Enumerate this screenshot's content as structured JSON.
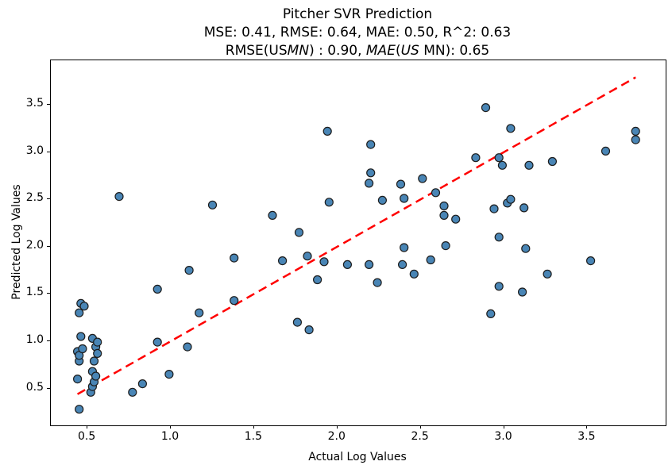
{
  "title": {
    "line1": "Pitcher SVR Prediction",
    "line2": "MSE: 0.41, RMSE: 0.64, MAE: 0.50, R^2: 0.63",
    "line3_segments": [
      {
        "text": "RMSE(US",
        "italic": false
      },
      {
        "text": "MN",
        "italic": true
      },
      {
        "text": ") : 0.90, ",
        "italic": false
      },
      {
        "text": "MAE",
        "italic": true
      },
      {
        "text": "(",
        "italic": false
      },
      {
        "text": "US",
        "italic": true
      },
      {
        "text": " MN): 0.65",
        "italic": false
      }
    ]
  },
  "axes": {
    "xlabel": "Actual Log Values",
    "ylabel": "Predicted Log Values",
    "x_ticks": [
      0.5,
      1.0,
      1.5,
      2.0,
      2.5,
      3.0,
      3.5
    ],
    "y_ticks": [
      0.5,
      1.0,
      1.5,
      2.0,
      2.5,
      3.0,
      3.5
    ]
  },
  "chart_data": {
    "type": "scatter",
    "title": "Pitcher SVR Prediction\nMSE: 0.41, RMSE: 0.64, MAE: 0.50, R^2: 0.63\nRMSE(US MN): 0.90, MAE(US MN): 0.65",
    "xlabel": "Actual Log Values",
    "ylabel": "Predicted Log Values",
    "xlim": [
      0.28,
      3.97
    ],
    "ylim": [
      0.11,
      3.97
    ],
    "grid": false,
    "legend": "none",
    "marker_color": "#4985b5",
    "marker_edge_color": "#1c1c1c",
    "reference_line": {
      "style": "dashed",
      "color": "#ff0000",
      "x": [
        0.44,
        3.79
      ],
      "y": [
        0.44,
        3.79
      ]
    },
    "points": [
      [
        0.44,
        0.6
      ],
      [
        0.44,
        0.89
      ],
      [
        0.45,
        0.28
      ],
      [
        0.45,
        0.79
      ],
      [
        0.45,
        0.85
      ],
      [
        0.45,
        1.3
      ],
      [
        0.46,
        1.05
      ],
      [
        0.46,
        1.4
      ],
      [
        0.47,
        0.92
      ],
      [
        0.48,
        1.37
      ],
      [
        0.52,
        0.46
      ],
      [
        0.53,
        0.52
      ],
      [
        0.53,
        0.68
      ],
      [
        0.53,
        1.03
      ],
      [
        0.54,
        0.57
      ],
      [
        0.54,
        0.79
      ],
      [
        0.55,
        0.63
      ],
      [
        0.55,
        0.94
      ],
      [
        0.56,
        0.87
      ],
      [
        0.56,
        0.99
      ],
      [
        0.69,
        2.53
      ],
      [
        0.77,
        0.46
      ],
      [
        0.83,
        0.55
      ],
      [
        0.92,
        0.99
      ],
      [
        0.92,
        1.55
      ],
      [
        0.99,
        0.65
      ],
      [
        1.1,
        0.94
      ],
      [
        1.11,
        1.75
      ],
      [
        1.17,
        1.3
      ],
      [
        1.25,
        2.44
      ],
      [
        1.38,
        1.43
      ],
      [
        1.38,
        1.88
      ],
      [
        1.61,
        2.33
      ],
      [
        1.67,
        1.85
      ],
      [
        1.76,
        1.2
      ],
      [
        1.77,
        2.15
      ],
      [
        1.82,
        1.9
      ],
      [
        1.83,
        1.12
      ],
      [
        1.88,
        1.65
      ],
      [
        1.92,
        1.84
      ],
      [
        1.94,
        3.22
      ],
      [
        1.95,
        2.47
      ],
      [
        2.06,
        1.81
      ],
      [
        2.19,
        1.81
      ],
      [
        2.19,
        2.67
      ],
      [
        2.2,
        2.78
      ],
      [
        2.2,
        3.08
      ],
      [
        2.24,
        1.62
      ],
      [
        2.27,
        2.49
      ],
      [
        2.38,
        2.66
      ],
      [
        2.39,
        1.81
      ],
      [
        2.4,
        1.99
      ],
      [
        2.4,
        2.51
      ],
      [
        2.46,
        1.71
      ],
      [
        2.51,
        2.72
      ],
      [
        2.56,
        1.86
      ],
      [
        2.59,
        2.57
      ],
      [
        2.64,
        2.33
      ],
      [
        2.64,
        2.43
      ],
      [
        2.65,
        2.01
      ],
      [
        2.71,
        2.29
      ],
      [
        2.83,
        2.94
      ],
      [
        2.89,
        3.47
      ],
      [
        2.92,
        1.29
      ],
      [
        2.94,
        2.4
      ],
      [
        2.97,
        1.58
      ],
      [
        2.97,
        2.1
      ],
      [
        2.97,
        2.94
      ],
      [
        2.99,
        2.86
      ],
      [
        3.02,
        2.46
      ],
      [
        3.04,
        2.5
      ],
      [
        3.04,
        3.25
      ],
      [
        3.11,
        1.52
      ],
      [
        3.12,
        2.41
      ],
      [
        3.13,
        1.98
      ],
      [
        3.15,
        2.86
      ],
      [
        3.26,
        1.71
      ],
      [
        3.29,
        2.9
      ],
      [
        3.52,
        1.85
      ],
      [
        3.61,
        3.01
      ],
      [
        3.79,
        3.13
      ],
      [
        3.79,
        3.22
      ]
    ]
  }
}
